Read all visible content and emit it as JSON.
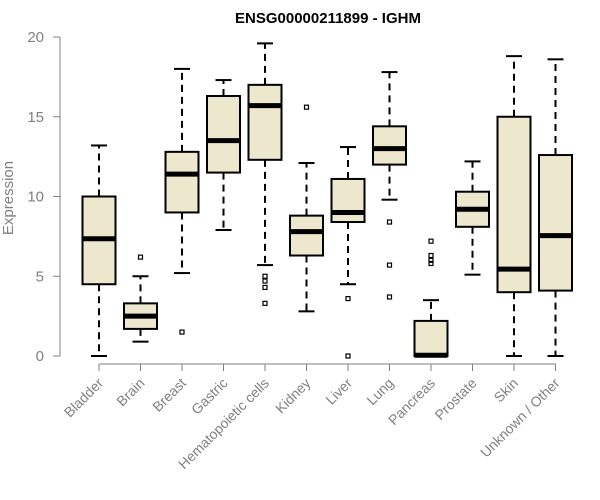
{
  "chart_data": {
    "type": "boxplot",
    "title": "ENSG00000211899 - IGHM",
    "xlabel": "",
    "ylabel": "Expression",
    "ylim": [
      0,
      20
    ],
    "yticks": [
      0,
      5,
      10,
      15,
      20
    ],
    "box_color": "#ede7cd",
    "categories": [
      "Bladder",
      "Brain",
      "Breast",
      "Gastric",
      "Hematopoietic cells",
      "Kidney",
      "Liver",
      "Lung",
      "Pancreas",
      "Prostate",
      "Skin",
      "Unknown / Other"
    ],
    "boxes": [
      {
        "label": "Bladder",
        "min": 0.0,
        "q1": 4.5,
        "median": 7.35,
        "q3": 10.0,
        "max": 13.2,
        "outliers": []
      },
      {
        "label": "Brain",
        "min": 0.9,
        "q1": 1.7,
        "median": 2.5,
        "q3": 3.3,
        "max": 5.0,
        "outliers": [
          6.2
        ]
      },
      {
        "label": "Breast",
        "min": 5.2,
        "q1": 9.0,
        "median": 11.4,
        "q3": 12.8,
        "max": 18.0,
        "outliers": [
          1.5
        ]
      },
      {
        "label": "Gastric",
        "min": 7.9,
        "q1": 11.5,
        "median": 13.5,
        "q3": 16.3,
        "max": 17.3,
        "outliers": []
      },
      {
        "label": "Hematopoietic cells",
        "min": 5.7,
        "q1": 12.3,
        "median": 15.7,
        "q3": 17.0,
        "max": 19.6,
        "outliers": [
          5.0,
          4.7,
          4.3,
          3.3
        ]
      },
      {
        "label": "Kidney",
        "min": 2.8,
        "q1": 6.3,
        "median": 7.8,
        "q3": 8.8,
        "max": 12.1,
        "outliers": [
          15.6
        ]
      },
      {
        "label": "Liver",
        "min": 4.5,
        "q1": 8.4,
        "median": 9.0,
        "q3": 11.1,
        "max": 13.1,
        "outliers": [
          3.6,
          0.0
        ]
      },
      {
        "label": "Lung",
        "min": 9.8,
        "q1": 12.0,
        "median": 13.0,
        "q3": 14.4,
        "max": 17.8,
        "outliers": [
          8.4,
          5.7,
          3.7
        ]
      },
      {
        "label": "Pancreas",
        "min": 0.0,
        "q1": 0.0,
        "median": 0.05,
        "q3": 2.2,
        "max": 3.5,
        "outliers": [
          7.2,
          6.3,
          6.0,
          5.8
        ]
      },
      {
        "label": "Prostate",
        "min": 5.1,
        "q1": 8.1,
        "median": 9.2,
        "q3": 10.3,
        "max": 12.2,
        "outliers": []
      },
      {
        "label": "Skin",
        "min": 0.0,
        "q1": 4.0,
        "median": 5.45,
        "q3": 15.0,
        "max": 18.8,
        "outliers": []
      },
      {
        "label": "Unknown / Other",
        "min": 0.0,
        "q1": 4.1,
        "median": 7.55,
        "q3": 12.6,
        "max": 18.6,
        "outliers": []
      }
    ]
  }
}
